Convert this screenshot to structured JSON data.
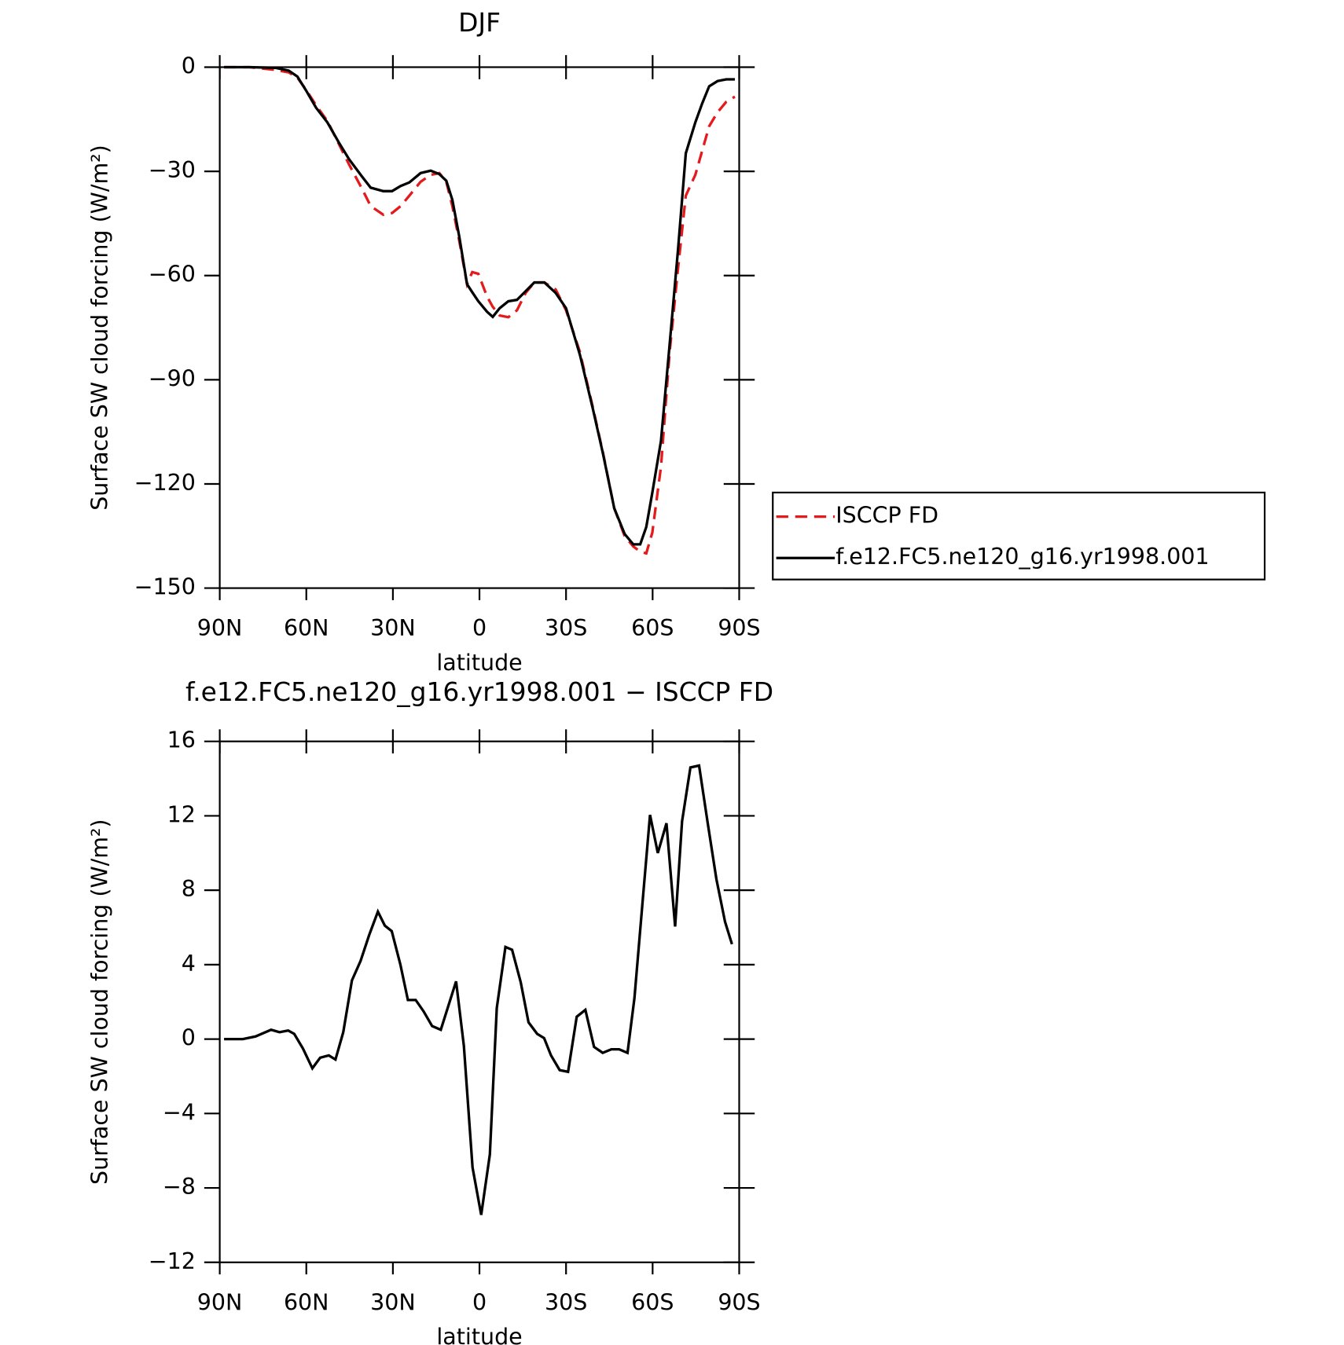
{
  "chart_data": [
    {
      "type": "line",
      "title": "DJF",
      "xlabel": "latitude",
      "ylabel": "Surface SW cloud forcing (W/m²)",
      "x": [
        88.5,
        79.6,
        70.6,
        66.1,
        63.1,
        60.1,
        56.6,
        52.7,
        48.8,
        45.2,
        40.7,
        37.7,
        33.3,
        30.3,
        27.3,
        24.3,
        20.4,
        16.9,
        13.9,
        11.5,
        9.4,
        7.0,
        4.3,
        2.5,
        0.4,
        -2.6,
        -4.6,
        -7.0,
        -10,
        -13,
        -16,
        -19,
        -22.5,
        -26.4,
        -30,
        -34.8,
        -39.3,
        -42.8,
        -46.7,
        -50.3,
        -53.3,
        -55.7,
        -57.8,
        -59.9,
        -62.9,
        -65.9,
        -68.8,
        -71.5,
        -74.8,
        -77.2,
        -79.6,
        -82.5,
        -85.5,
        -88.5
      ],
      "series": [
        {
          "name": "ISCCP FD",
          "color": "#e41a1c",
          "dash": true,
          "values": [
            0,
            0,
            -0.8,
            -1.5,
            -3,
            -6.5,
            -11,
            -15.5,
            -22,
            -28,
            -35,
            -40,
            -42.5,
            -42,
            -40,
            -37,
            -33,
            -31,
            -30.5,
            -33,
            -40,
            -50,
            -62.5,
            -59,
            -59.5,
            -66,
            -69,
            -71.5,
            -72,
            -70,
            -65,
            -62,
            -62,
            -64,
            -70,
            -82,
            -98,
            -111,
            -127,
            -135,
            -138,
            -139.5,
            -140,
            -134,
            -115,
            -82,
            -58,
            -37,
            -31,
            -24,
            -17,
            -13,
            -10,
            -8.5
          ]
        },
        {
          "name": "f.e12.FC5.ne120_g16.yr1998.001",
          "color": "#000000",
          "dash": false,
          "values": [
            0,
            0,
            -0.2,
            -1,
            -2.7,
            -6.7,
            -11.7,
            -15.9,
            -21.6,
            -26.5,
            -31.5,
            -34.7,
            -35.7,
            -35.7,
            -34.2,
            -33.2,
            -30.5,
            -29.8,
            -30.8,
            -32.7,
            -38.2,
            -48.8,
            -62.5,
            -64.8,
            -67.4,
            -70.4,
            -71.9,
            -69.4,
            -67.4,
            -67,
            -64.5,
            -62,
            -62,
            -65,
            -69.4,
            -82.8,
            -98.4,
            -111.3,
            -127,
            -134.4,
            -137.4,
            -137.4,
            -132.4,
            -122.5,
            -107.6,
            -79.8,
            -52.6,
            -24.8,
            -15.9,
            -10.4,
            -5.5,
            -4,
            -3.5,
            -3.5
          ]
        }
      ],
      "xlim": [
        90,
        -90
      ],
      "xticks": [
        {
          "value": 90,
          "label": "90N"
        },
        {
          "value": 60,
          "label": "60N"
        },
        {
          "value": 30,
          "label": "30N"
        },
        0,
        {
          "value": -30,
          "label": "30S"
        },
        {
          "value": -60,
          "label": "60S"
        },
        {
          "value": -90,
          "label": "90S"
        }
      ],
      "ylim": [
        -150,
        0
      ],
      "yticks": [
        0,
        {
          "value": -30,
          "label": "−30"
        },
        {
          "value": -60,
          "label": "−60"
        },
        {
          "value": -90,
          "label": "−90"
        },
        {
          "value": -120,
          "label": "−120"
        },
        {
          "value": -150,
          "label": "−150"
        }
      ],
      "legend": "right"
    },
    {
      "type": "line",
      "title": "f.e12.FC5.ne120_g16.yr1998.001 − ISCCP FD",
      "xlabel": "latitude",
      "ylabel": "Surface SW cloud forcing (W/m²)",
      "x": [
        88.5,
        82,
        77.6,
        72.2,
        69.3,
        66.3,
        64.2,
        61.2,
        57.9,
        55.2,
        52.2,
        49.9,
        47.2,
        44.2,
        41.2,
        38.2,
        35.2,
        32.8,
        30.4,
        27.4,
        24.8,
        22.1,
        19.4,
        16.4,
        13.4,
        8.1,
        5.4,
        2.4,
        -0.6,
        -3.6,
        -6,
        -9,
        -11.3,
        -14.3,
        -17,
        -20,
        -22.4,
        -24.8,
        -27.8,
        -30.7,
        -33.7,
        -36.7,
        -39.7,
        -42.7,
        -45.7,
        -48.4,
        -51.3,
        -53.7,
        -56.7,
        -59.1,
        -61.8,
        -64.8,
        -67.8,
        -70.2,
        -73.1,
        -76.1,
        -79.1,
        -82.1,
        -85.1,
        -87.5
      ],
      "values": [
        0,
        0,
        0.14,
        0.5,
        0.37,
        0.46,
        0.28,
        -0.5,
        -1.57,
        -1.0,
        -0.88,
        -1.1,
        0.37,
        3.15,
        4.2,
        5.6,
        6.85,
        6.1,
        5.8,
        4,
        2.1,
        2.1,
        1.5,
        0.7,
        0.5,
        3.1,
        -0.37,
        -6.9,
        -9.45,
        -6.2,
        1.67,
        4.95,
        4.8,
        3.05,
        0.9,
        0.28,
        0.05,
        -0.88,
        -1.67,
        -1.76,
        1.2,
        1.57,
        -0.42,
        -0.74,
        -0.55,
        -0.55,
        -0.74,
        2.2,
        7.7,
        12.05,
        10,
        11.6,
        6.05,
        11.7,
        14.6,
        14.7,
        11.6,
        8.6,
        6.3,
        5.1
      ],
      "color": "#000000",
      "xlim": [
        90,
        -90
      ],
      "xticks": [
        {
          "value": 90,
          "label": "90N"
        },
        {
          "value": 60,
          "label": "60N"
        },
        {
          "value": 30,
          "label": "30N"
        },
        0,
        {
          "value": -30,
          "label": "30S"
        },
        {
          "value": -60,
          "label": "60S"
        },
        {
          "value": -90,
          "label": "90S"
        }
      ],
      "ylim": [
        -12,
        16
      ],
      "yticks": [
        {
          "value": -12,
          "label": "−12"
        },
        {
          "value": -8,
          "label": "−8"
        },
        {
          "value": -4,
          "label": "−4"
        },
        0,
        4,
        8,
        12,
        16
      ]
    }
  ]
}
